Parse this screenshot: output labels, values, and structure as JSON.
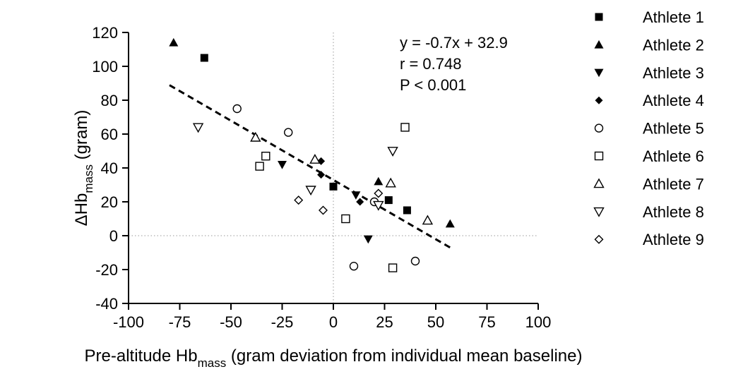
{
  "chart_data": {
    "type": "scatter",
    "xlabel": "Pre-altitude Hb",
    "xlabel_sub": "mass",
    "xlabel_rest": " (gram deviation from individual mean baseline)",
    "ylabel": "ΔHb",
    "ylabel_sub": "mass",
    "ylabel_rest": " (gram)",
    "xlim": [
      -100,
      100
    ],
    "ylim": [
      -40,
      120
    ],
    "x_ticks": [
      -100,
      -75,
      -50,
      -25,
      0,
      25,
      50,
      75,
      100
    ],
    "y_ticks": [
      -40,
      -20,
      0,
      20,
      40,
      60,
      80,
      100,
      120
    ],
    "x_tick_labels": [
      "-100",
      "-75",
      "-50",
      "-25",
      "0",
      "25",
      "50",
      "75",
      "100"
    ],
    "y_tick_labels": [
      "-40",
      "-20",
      "0",
      "20",
      "40",
      "60",
      "80",
      "100",
      "120"
    ],
    "grid": false,
    "zero_lines": true,
    "legend_position": "right",
    "annotations": [
      "y = -0.7x + 32.9",
      "r = 0.748",
      "P < 0.001"
    ],
    "regression": {
      "slope": -0.7,
      "intercept": 32.9,
      "x_range": [
        -80,
        57
      ]
    },
    "series": [
      {
        "name": "Athlete 1",
        "marker": "square-filled",
        "points": [
          [
            -63,
            105
          ],
          [
            0,
            29
          ],
          [
            27,
            21
          ],
          [
            36,
            15
          ]
        ]
      },
      {
        "name": "Athlete 2",
        "marker": "triangle-up-filled",
        "points": [
          [
            -78,
            114
          ],
          [
            22,
            32
          ],
          [
            57,
            7
          ]
        ]
      },
      {
        "name": "Athlete 3",
        "marker": "triangle-down-filled",
        "points": [
          [
            -25,
            42
          ],
          [
            11,
            24
          ],
          [
            17,
            -2
          ]
        ]
      },
      {
        "name": "Athlete 4",
        "marker": "diamond-filled",
        "points": [
          [
            -6,
            44
          ],
          [
            -6,
            36
          ],
          [
            13,
            20
          ]
        ]
      },
      {
        "name": "Athlete 5",
        "marker": "circle-open",
        "points": [
          [
            -47,
            75
          ],
          [
            -22,
            61
          ],
          [
            10,
            -18
          ],
          [
            20,
            20
          ],
          [
            40,
            -15
          ]
        ]
      },
      {
        "name": "Athlete 6",
        "marker": "square-open",
        "points": [
          [
            -36,
            41
          ],
          [
            -33,
            47
          ],
          [
            6,
            10
          ],
          [
            29,
            -19
          ],
          [
            35,
            64
          ]
        ]
      },
      {
        "name": "Athlete 7",
        "marker": "triangle-up-open",
        "points": [
          [
            -38,
            58
          ],
          [
            -9,
            45
          ],
          [
            28,
            31
          ],
          [
            46,
            9
          ]
        ]
      },
      {
        "name": "Athlete 8",
        "marker": "triangle-down-open",
        "points": [
          [
            -66,
            64
          ],
          [
            -11,
            27
          ],
          [
            29,
            50
          ],
          [
            22,
            18
          ]
        ]
      },
      {
        "name": "Athlete 9",
        "marker": "diamond-open",
        "points": [
          [
            -17,
            21
          ],
          [
            -5,
            15
          ],
          [
            22,
            25
          ]
        ]
      }
    ]
  }
}
